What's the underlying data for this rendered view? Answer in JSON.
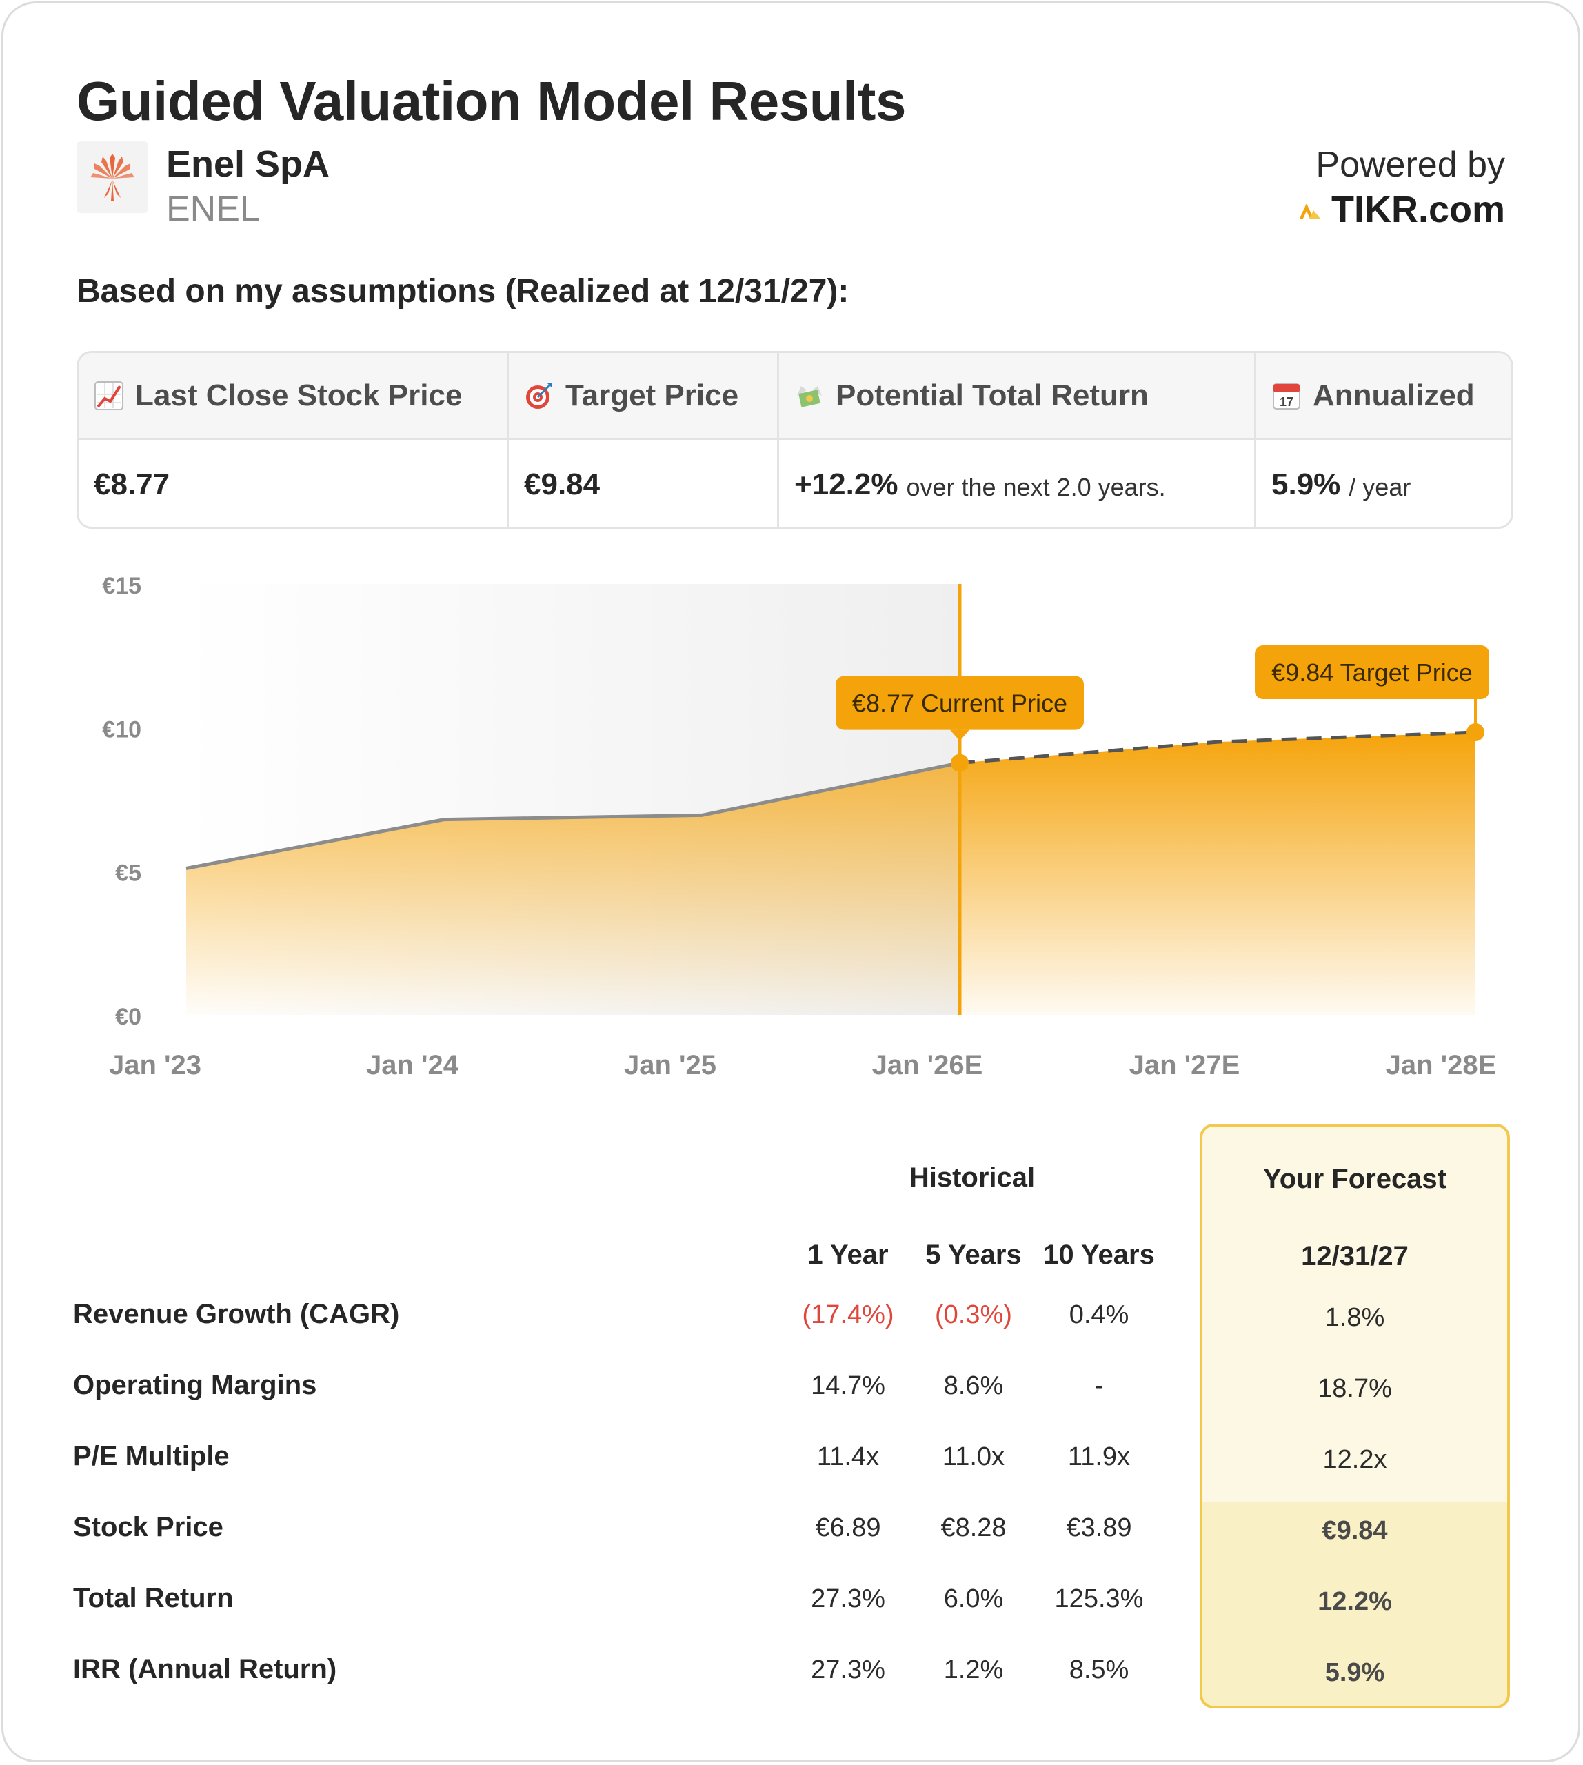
{
  "title": "Guided Valuation Model Results",
  "company": {
    "name": "Enel SpA",
    "ticker": "ENEL",
    "logo_icon": "enel-logo-icon"
  },
  "powered_by": {
    "label": "Powered by",
    "brand": "TIKR.com",
    "brand_icon": "tikr-logo-icon"
  },
  "assumptions_label": "Based on my assumptions (Realized at 12/31/27):",
  "summary": [
    {
      "icon": "chart-increasing-icon",
      "label": "Last Close Stock Price",
      "value": "€8.77",
      "suffix": ""
    },
    {
      "icon": "target-icon",
      "label": "Target Price",
      "value": "€9.84",
      "suffix": ""
    },
    {
      "icon": "money-with-wings-icon",
      "label": "Potential Total Return",
      "value": "+12.2%",
      "suffix": "over the next 2.0 years."
    },
    {
      "icon": "calendar-icon",
      "label": "Annualized",
      "value": "5.9%",
      "suffix": "/ year"
    }
  ],
  "chart_data": {
    "type": "area",
    "x": [
      "Jan '23",
      "Jan '24",
      "Jan '25",
      "Jan '26E",
      "Jan '27E",
      "Jan '28E"
    ],
    "historical": {
      "x": [
        "Jan '23",
        "Jan '24",
        "Jan '25",
        "Jan '26E"
      ],
      "values": [
        5.1,
        6.8,
        6.95,
        8.77
      ]
    },
    "forecast": {
      "x": [
        "Jan '26E",
        "Jan '27E",
        "Jan '28E"
      ],
      "values": [
        8.77,
        9.5,
        9.84
      ]
    },
    "y_ticks": [
      "€0",
      "€5",
      "€10",
      "€15"
    ],
    "ylim": [
      0,
      15
    ],
    "annotations": [
      {
        "label": "€8.77 Current Price",
        "x_index": 3,
        "value": 8.77
      },
      {
        "label": "€9.84 Target Price",
        "x_index": 5,
        "value": 9.84
      }
    ],
    "colors": {
      "accent": "#f5a30a",
      "line": "#8c8c8c",
      "dashed": "#555555",
      "shade": "#f0f0f0"
    }
  },
  "table": {
    "historical_header": "Historical",
    "forecast_header": "Your Forecast",
    "columns": [
      "1 Year",
      "5 Years",
      "10 Years"
    ],
    "forecast_date": "12/31/27",
    "rows": [
      {
        "label": "Revenue Growth (CAGR)",
        "values": [
          "(17.4%)",
          "(0.3%)",
          "0.4%"
        ],
        "forecast": "1.8%"
      },
      {
        "label": "Operating Margins",
        "values": [
          "14.7%",
          "8.6%",
          "-"
        ],
        "forecast": "18.7%"
      },
      {
        "label": "P/E Multiple",
        "values": [
          "11.4x",
          "11.0x",
          "11.9x"
        ],
        "forecast": "12.2x"
      },
      {
        "label": "Stock Price",
        "values": [
          "€6.89",
          "€8.28",
          "€3.89"
        ],
        "forecast": "€9.84"
      },
      {
        "label": "Total Return",
        "values": [
          "27.3%",
          "6.0%",
          "125.3%"
        ],
        "forecast": "12.2%"
      },
      {
        "label": "IRR (Annual Return)",
        "values": [
          "27.3%",
          "1.2%",
          "8.5%"
        ],
        "forecast": "5.9%"
      }
    ],
    "colors": {
      "negative": "#e0463b",
      "forecast_border": "#f2c94c",
      "forecast_bg": "#fdf8e4"
    }
  }
}
